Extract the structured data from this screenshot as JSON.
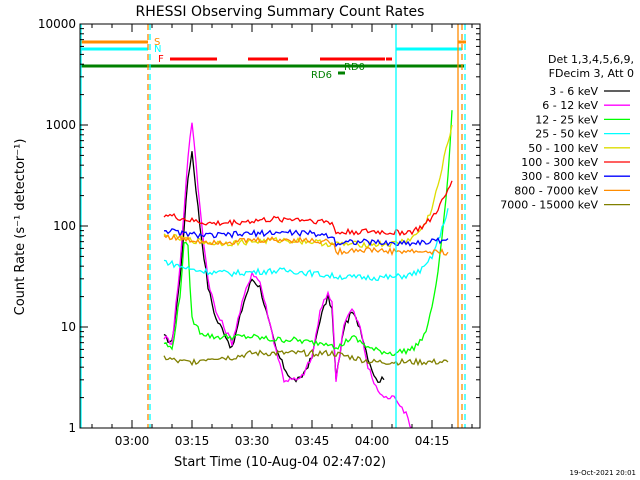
{
  "chart_data": {
    "type": "line",
    "title": "RHESSI Observing Summary Count Rates",
    "xlabel": "Start Time (10-Aug-04 02:47:02)",
    "ylabel": "Count Rate (s⁻¹ detector⁻¹)",
    "y_scale": "log",
    "ylim": [
      1,
      10000
    ],
    "x_range": [
      "02:47",
      "04:27"
    ],
    "x_ticks": [
      "03:00",
      "03:15",
      "03:30",
      "03:45",
      "04:00",
      "04:15"
    ],
    "y_ticks": [
      "1",
      "10",
      "100",
      "1000",
      "10000"
    ],
    "legend_header": [
      "Det 1,3,4,5,6,9,",
      "FDecim 3, Att 0"
    ],
    "legend_position": "right",
    "series": [
      {
        "name": "3 - 6 keV",
        "color": "#000000",
        "points": [
          [
            "03:08",
            8
          ],
          [
            "03:10",
            7
          ],
          [
            "03:12",
            30
          ],
          [
            "03:14",
            300
          ],
          [
            "03:15",
            550
          ],
          [
            "03:17",
            100
          ],
          [
            "03:19",
            25
          ],
          [
            "03:21",
            12
          ],
          [
            "03:23",
            9
          ],
          [
            "03:25",
            6
          ],
          [
            "03:28",
            18
          ],
          [
            "03:30",
            30
          ],
          [
            "03:32",
            25
          ],
          [
            "03:34",
            12
          ],
          [
            "03:36",
            6
          ],
          [
            "03:38",
            4
          ],
          [
            "03:40",
            3
          ],
          [
            "03:42",
            3
          ],
          [
            "03:45",
            5
          ],
          [
            "03:47",
            12
          ],
          [
            "03:49",
            20
          ],
          [
            "03:50",
            15
          ],
          [
            "03:51",
            3
          ],
          [
            "03:53",
            10
          ],
          [
            "03:55",
            14
          ],
          [
            "03:57",
            10
          ],
          [
            "03:59",
            5
          ],
          [
            "04:01",
            3
          ],
          [
            "04:03",
            3
          ]
        ]
      },
      {
        "name": "6 - 12 keV",
        "color": "#ff00ff",
        "points": [
          [
            "03:08",
            8
          ],
          [
            "03:10",
            7
          ],
          [
            "03:12",
            40
          ],
          [
            "03:14",
            500
          ],
          [
            "03:15",
            1100
          ],
          [
            "03:17",
            150
          ],
          [
            "03:19",
            30
          ],
          [
            "03:21",
            14
          ],
          [
            "03:23",
            10
          ],
          [
            "03:25",
            7
          ],
          [
            "03:28",
            20
          ],
          [
            "03:30",
            35
          ],
          [
            "03:32",
            28
          ],
          [
            "03:34",
            13
          ],
          [
            "03:36",
            6
          ],
          [
            "03:38",
            3
          ],
          [
            "03:40",
            3
          ],
          [
            "03:42",
            3
          ],
          [
            "03:45",
            5
          ],
          [
            "03:47",
            14
          ],
          [
            "03:49",
            22
          ],
          [
            "03:50",
            18
          ],
          [
            "03:51",
            3
          ],
          [
            "03:53",
            11
          ],
          [
            "03:55",
            15
          ],
          [
            "03:57",
            10
          ],
          [
            "03:59",
            4
          ],
          [
            "04:01",
            2.5
          ],
          [
            "04:03",
            2
          ],
          [
            "04:06",
            2
          ],
          [
            "04:08",
            1.5
          ],
          [
            "04:10",
            1
          ]
        ]
      },
      {
        "name": "12 - 25 keV",
        "color": "#00ff00",
        "points": [
          [
            "03:08",
            7
          ],
          [
            "03:10",
            6
          ],
          [
            "03:12",
            20
          ],
          [
            "03:13",
            70
          ],
          [
            "03:14",
            60
          ],
          [
            "03:15",
            12
          ],
          [
            "03:17",
            9
          ],
          [
            "03:20",
            8
          ],
          [
            "03:25",
            8
          ],
          [
            "03:30",
            8
          ],
          [
            "03:35",
            7.5
          ],
          [
            "03:40",
            7.5
          ],
          [
            "03:45",
            7
          ],
          [
            "03:50",
            7
          ],
          [
            "03:51",
            6
          ],
          [
            "03:55",
            8
          ],
          [
            "04:00",
            6
          ],
          [
            "04:05",
            5.5
          ],
          [
            "04:10",
            6
          ],
          [
            "04:13",
            8
          ],
          [
            "04:15",
            15
          ],
          [
            "04:17",
            50
          ],
          [
            "04:19",
            300
          ],
          [
            "04:20",
            1400
          ]
        ]
      },
      {
        "name": "25 - 50 keV",
        "color": "#00ffff",
        "points": [
          [
            "03:08",
            45
          ],
          [
            "03:12",
            40
          ],
          [
            "03:15",
            37
          ],
          [
            "03:20",
            35
          ],
          [
            "03:25",
            34
          ],
          [
            "03:30",
            35
          ],
          [
            "03:35",
            36
          ],
          [
            "03:40",
            36
          ],
          [
            "03:45",
            34
          ],
          [
            "03:50",
            32
          ],
          [
            "03:55",
            31
          ],
          [
            "04:00",
            31
          ],
          [
            "04:05",
            31
          ],
          [
            "04:10",
            33
          ],
          [
            "04:13",
            38
          ],
          [
            "04:15",
            50
          ],
          [
            "04:17",
            80
          ],
          [
            "04:19",
            150
          ]
        ]
      },
      {
        "name": "50 - 100 keV",
        "color": "#dddd00",
        "points": [
          [
            "03:08",
            80
          ],
          [
            "03:12",
            75
          ],
          [
            "03:15",
            72
          ],
          [
            "03:20",
            68
          ],
          [
            "03:25",
            68
          ],
          [
            "03:30",
            70
          ],
          [
            "03:35",
            72
          ],
          [
            "03:40",
            72
          ],
          [
            "03:45",
            70
          ],
          [
            "03:50",
            66
          ],
          [
            "03:55",
            66
          ],
          [
            "04:00",
            66
          ],
          [
            "04:05",
            66
          ],
          [
            "04:10",
            75
          ],
          [
            "04:13",
            100
          ],
          [
            "04:15",
            150
          ],
          [
            "04:17",
            300
          ],
          [
            "04:19",
            700
          ],
          [
            "04:20",
            1000
          ]
        ]
      },
      {
        "name": "100 - 300 keV",
        "color": "#ff0000",
        "points": [
          [
            "03:08",
            130
          ],
          [
            "03:12",
            120
          ],
          [
            "03:15",
            112
          ],
          [
            "03:20",
            105
          ],
          [
            "03:25",
            108
          ],
          [
            "03:30",
            112
          ],
          [
            "03:35",
            116
          ],
          [
            "03:40",
            118
          ],
          [
            "03:45",
            114
          ],
          [
            "03:50",
            108
          ],
          [
            "03:51",
            85
          ],
          [
            "03:55",
            88
          ],
          [
            "04:00",
            88
          ],
          [
            "04:05",
            86
          ],
          [
            "04:10",
            88
          ],
          [
            "04:13",
            100
          ],
          [
            "04:15",
            120
          ],
          [
            "04:17",
            160
          ],
          [
            "04:19",
            220
          ],
          [
            "04:20",
            280
          ]
        ]
      },
      {
        "name": "300 - 800 keV",
        "color": "#0000ff",
        "points": [
          [
            "03:08",
            92
          ],
          [
            "03:12",
            85
          ],
          [
            "03:15",
            82
          ],
          [
            "03:20",
            80
          ],
          [
            "03:25",
            82
          ],
          [
            "03:30",
            84
          ],
          [
            "03:35",
            86
          ],
          [
            "03:40",
            86
          ],
          [
            "03:45",
            84
          ],
          [
            "03:50",
            80
          ],
          [
            "03:51",
            68
          ],
          [
            "03:55",
            70
          ],
          [
            "04:00",
            69
          ],
          [
            "04:05",
            67
          ],
          [
            "04:10",
            68
          ],
          [
            "04:15",
            70
          ],
          [
            "04:19",
            75
          ]
        ]
      },
      {
        "name": "800 - 7000 keV",
        "color": "#ff8c00",
        "points": [
          [
            "03:08",
            80
          ],
          [
            "03:12",
            75
          ],
          [
            "03:15",
            72
          ],
          [
            "03:20",
            70
          ],
          [
            "03:25",
            70
          ],
          [
            "03:30",
            72
          ],
          [
            "03:35",
            73
          ],
          [
            "03:40",
            73
          ],
          [
            "03:45",
            72
          ],
          [
            "03:50",
            70
          ],
          [
            "03:51",
            55
          ],
          [
            "03:55",
            58
          ],
          [
            "04:00",
            58
          ],
          [
            "04:05",
            56
          ],
          [
            "04:10",
            56
          ],
          [
            "04:15",
            55
          ],
          [
            "04:19",
            55
          ]
        ]
      },
      {
        "name": "7000 - 15000 keV",
        "color": "#808000",
        "points": [
          [
            "03:08",
            5
          ],
          [
            "03:12",
            4.5
          ],
          [
            "03:15",
            4.5
          ],
          [
            "03:20",
            5
          ],
          [
            "03:25",
            5
          ],
          [
            "03:30",
            5.5
          ],
          [
            "03:35",
            5.5
          ],
          [
            "03:40",
            5.5
          ],
          [
            "03:45",
            5.5
          ],
          [
            "03:50",
            5.5
          ],
          [
            "03:55",
            5
          ],
          [
            "04:00",
            4.5
          ],
          [
            "04:05",
            4.5
          ],
          [
            "04:10",
            4.5
          ],
          [
            "04:15",
            4.5
          ],
          [
            "04:19",
            4.5
          ]
        ]
      }
    ],
    "flags": [
      {
        "label": "S",
        "color": "#ff8c00"
      },
      {
        "label": "N",
        "color": "#00ffff"
      },
      {
        "label": "F",
        "color": "#ff0000"
      },
      {
        "label": "RD0",
        "color": "#008000"
      },
      {
        "label": "RD6",
        "color": "#008000"
      }
    ]
  },
  "footer": {
    "timestamp": "19-Oct-2021 20:01"
  }
}
